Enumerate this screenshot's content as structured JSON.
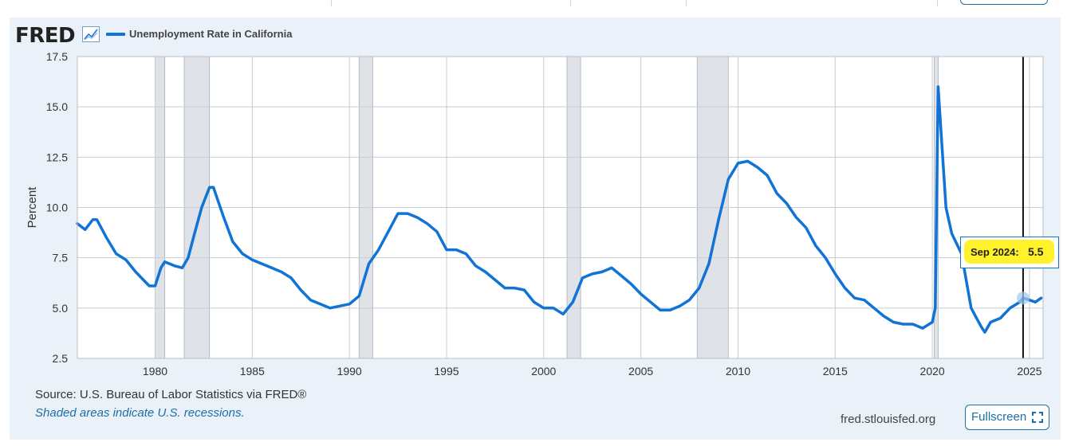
{
  "brand": {
    "logo_text": "FRED",
    "logo_icon": "trend-chart-icon"
  },
  "legend": {
    "series_name": "Unemployment Rate in California",
    "color": "#1273d6"
  },
  "footer": {
    "source": "Source: U.S. Bureau of Labor Statistics via FRED®",
    "recession_note": "Shaded areas indicate U.S. recessions.",
    "url": "fred.stlouisfed.org",
    "fullscreen_label": "Fullscreen"
  },
  "tooltip": {
    "date": "Sep 2024:",
    "value": "5.5"
  },
  "colors": {
    "line": "#1273d6",
    "recession": "#dfe3e8",
    "panel": "#eaf1f8",
    "highlight": "#fff12a"
  },
  "chart_data": {
    "type": "line",
    "ylabel": "Percent",
    "ylim": [
      2.5,
      17.5
    ],
    "yticks": [
      "2.5",
      "5.0",
      "7.5",
      "10.0",
      "12.5",
      "15.0",
      "17.5"
    ],
    "xlim": [
      1976.0,
      2025.7
    ],
    "xticks": [
      "1980",
      "1985",
      "1990",
      "1995",
      "2000",
      "2005",
      "2010",
      "2015",
      "2020",
      "2025"
    ],
    "grid": true,
    "recessions": [
      [
        1980.0,
        1980.5
      ],
      [
        1981.5,
        1982.8
      ],
      [
        1990.5,
        1991.2
      ],
      [
        2001.2,
        2001.9
      ],
      [
        2007.9,
        2009.5
      ],
      [
        2020.1,
        2020.3
      ]
    ],
    "highlight": {
      "x": 2024.67,
      "y": 5.5,
      "label": "Sep 2024"
    },
    "series": [
      {
        "name": "Unemployment Rate in California",
        "points": [
          [
            1976.0,
            9.2
          ],
          [
            1976.4,
            8.9
          ],
          [
            1976.8,
            9.4
          ],
          [
            1977.0,
            9.4
          ],
          [
            1977.5,
            8.5
          ],
          [
            1978.0,
            7.7
          ],
          [
            1978.5,
            7.4
          ],
          [
            1979.0,
            6.8
          ],
          [
            1979.5,
            6.3
          ],
          [
            1979.7,
            6.1
          ],
          [
            1980.0,
            6.1
          ],
          [
            1980.3,
            7.0
          ],
          [
            1980.5,
            7.3
          ],
          [
            1981.0,
            7.1
          ],
          [
            1981.4,
            7.0
          ],
          [
            1981.7,
            7.5
          ],
          [
            1982.0,
            8.6
          ],
          [
            1982.4,
            10.0
          ],
          [
            1982.8,
            11.0
          ],
          [
            1983.0,
            11.0
          ],
          [
            1983.5,
            9.6
          ],
          [
            1984.0,
            8.3
          ],
          [
            1984.5,
            7.7
          ],
          [
            1985.0,
            7.4
          ],
          [
            1985.5,
            7.2
          ],
          [
            1986.0,
            7.0
          ],
          [
            1986.5,
            6.8
          ],
          [
            1987.0,
            6.5
          ],
          [
            1987.5,
            5.9
          ],
          [
            1988.0,
            5.4
          ],
          [
            1988.5,
            5.2
          ],
          [
            1989.0,
            5.0
          ],
          [
            1989.5,
            5.1
          ],
          [
            1990.0,
            5.2
          ],
          [
            1990.5,
            5.6
          ],
          [
            1991.0,
            7.2
          ],
          [
            1991.5,
            7.9
          ],
          [
            1992.0,
            8.8
          ],
          [
            1992.5,
            9.7
          ],
          [
            1993.0,
            9.7
          ],
          [
            1993.5,
            9.5
          ],
          [
            1994.0,
            9.2
          ],
          [
            1994.5,
            8.8
          ],
          [
            1995.0,
            7.9
          ],
          [
            1995.5,
            7.9
          ],
          [
            1996.0,
            7.7
          ],
          [
            1996.5,
            7.1
          ],
          [
            1997.0,
            6.8
          ],
          [
            1997.5,
            6.4
          ],
          [
            1998.0,
            6.0
          ],
          [
            1998.5,
            6.0
          ],
          [
            1999.0,
            5.9
          ],
          [
            1999.5,
            5.3
          ],
          [
            2000.0,
            5.0
          ],
          [
            2000.5,
            5.0
          ],
          [
            2001.0,
            4.7
          ],
          [
            2001.5,
            5.3
          ],
          [
            2002.0,
            6.5
          ],
          [
            2002.5,
            6.7
          ],
          [
            2003.0,
            6.8
          ],
          [
            2003.5,
            7.0
          ],
          [
            2004.0,
            6.6
          ],
          [
            2004.5,
            6.2
          ],
          [
            2005.0,
            5.7
          ],
          [
            2005.5,
            5.3
          ],
          [
            2006.0,
            4.9
          ],
          [
            2006.5,
            4.9
          ],
          [
            2007.0,
            5.1
          ],
          [
            2007.5,
            5.4
          ],
          [
            2008.0,
            6.0
          ],
          [
            2008.5,
            7.2
          ],
          [
            2009.0,
            9.4
          ],
          [
            2009.5,
            11.4
          ],
          [
            2010.0,
            12.2
          ],
          [
            2010.5,
            12.3
          ],
          [
            2011.0,
            12.0
          ],
          [
            2011.5,
            11.6
          ],
          [
            2012.0,
            10.7
          ],
          [
            2012.5,
            10.2
          ],
          [
            2013.0,
            9.5
          ],
          [
            2013.5,
            9.0
          ],
          [
            2014.0,
            8.1
          ],
          [
            2014.5,
            7.5
          ],
          [
            2015.0,
            6.7
          ],
          [
            2015.5,
            6.0
          ],
          [
            2016.0,
            5.5
          ],
          [
            2016.5,
            5.4
          ],
          [
            2017.0,
            5.0
          ],
          [
            2017.5,
            4.6
          ],
          [
            2018.0,
            4.3
          ],
          [
            2018.5,
            4.2
          ],
          [
            2019.0,
            4.2
          ],
          [
            2019.5,
            4.0
          ],
          [
            2020.0,
            4.3
          ],
          [
            2020.15,
            5.0
          ],
          [
            2020.3,
            16.0
          ],
          [
            2020.5,
            13.0
          ],
          [
            2020.7,
            10.0
          ],
          [
            2021.0,
            8.7
          ],
          [
            2021.5,
            7.7
          ],
          [
            2022.0,
            5.0
          ],
          [
            2022.5,
            4.1
          ],
          [
            2022.7,
            3.8
          ],
          [
            2023.0,
            4.3
          ],
          [
            2023.5,
            4.5
          ],
          [
            2024.0,
            5.0
          ],
          [
            2024.5,
            5.3
          ],
          [
            2024.67,
            5.5
          ],
          [
            2025.0,
            5.4
          ],
          [
            2025.3,
            5.3
          ],
          [
            2025.6,
            5.5
          ]
        ]
      }
    ]
  }
}
